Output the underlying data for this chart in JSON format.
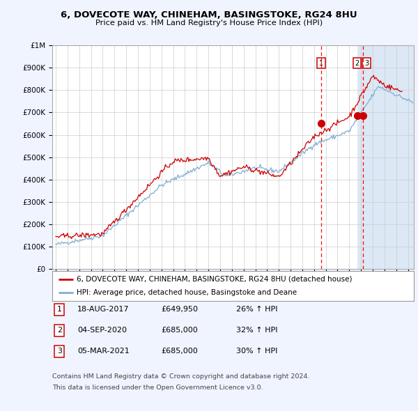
{
  "title1": "6, DOVECOTE WAY, CHINEHAM, BASINGSTOKE, RG24 8HU",
  "title2": "Price paid vs. HM Land Registry's House Price Index (HPI)",
  "ylabel_ticks": [
    "£0",
    "£100K",
    "£200K",
    "£300K",
    "£400K",
    "£500K",
    "£600K",
    "£700K",
    "£800K",
    "£900K",
    "£1M"
  ],
  "ytick_vals": [
    0,
    100000,
    200000,
    300000,
    400000,
    500000,
    600000,
    700000,
    800000,
    900000,
    1000000
  ],
  "ylim": [
    0,
    1000000
  ],
  "xlim_start": 1994.7,
  "xlim_end": 2025.5,
  "sale_dates": [
    2017.62,
    2020.67,
    2021.17
  ],
  "sale_prices": [
    649950,
    685000,
    685000
  ],
  "sale_labels": [
    "1",
    "2",
    "3"
  ],
  "dashed_line_dates": [
    2017.62,
    2021.17
  ],
  "legend_line1_color": "#cc0000",
  "legend_line1_label": "6, DOVECOTE WAY, CHINEHAM, BASINGSTOKE, RG24 8HU (detached house)",
  "legend_line2_color": "#7eaed4",
  "legend_line2_label": "HPI: Average price, detached house, Basingstoke and Deane",
  "table_rows": [
    {
      "num": "1",
      "date": "18-AUG-2017",
      "price": "£649,950",
      "hpi": "26% ↑ HPI"
    },
    {
      "num": "2",
      "date": "04-SEP-2020",
      "price": "£685,000",
      "hpi": "32% ↑ HPI"
    },
    {
      "num": "3",
      "date": "05-MAR-2021",
      "price": "£685,000",
      "hpi": "30% ↑ HPI"
    }
  ],
  "footnote1": "Contains HM Land Registry data © Crown copyright and database right 2024.",
  "footnote2": "This data is licensed under the Open Government Licence v3.0.",
  "fig_bg_color": "#f0f4ff",
  "plot_bg_color": "#ffffff",
  "plot_bg_right_color": "#dce8f5",
  "grid_color": "#cccccc",
  "shade_start": 2020.67,
  "shade_end": 2025.5
}
